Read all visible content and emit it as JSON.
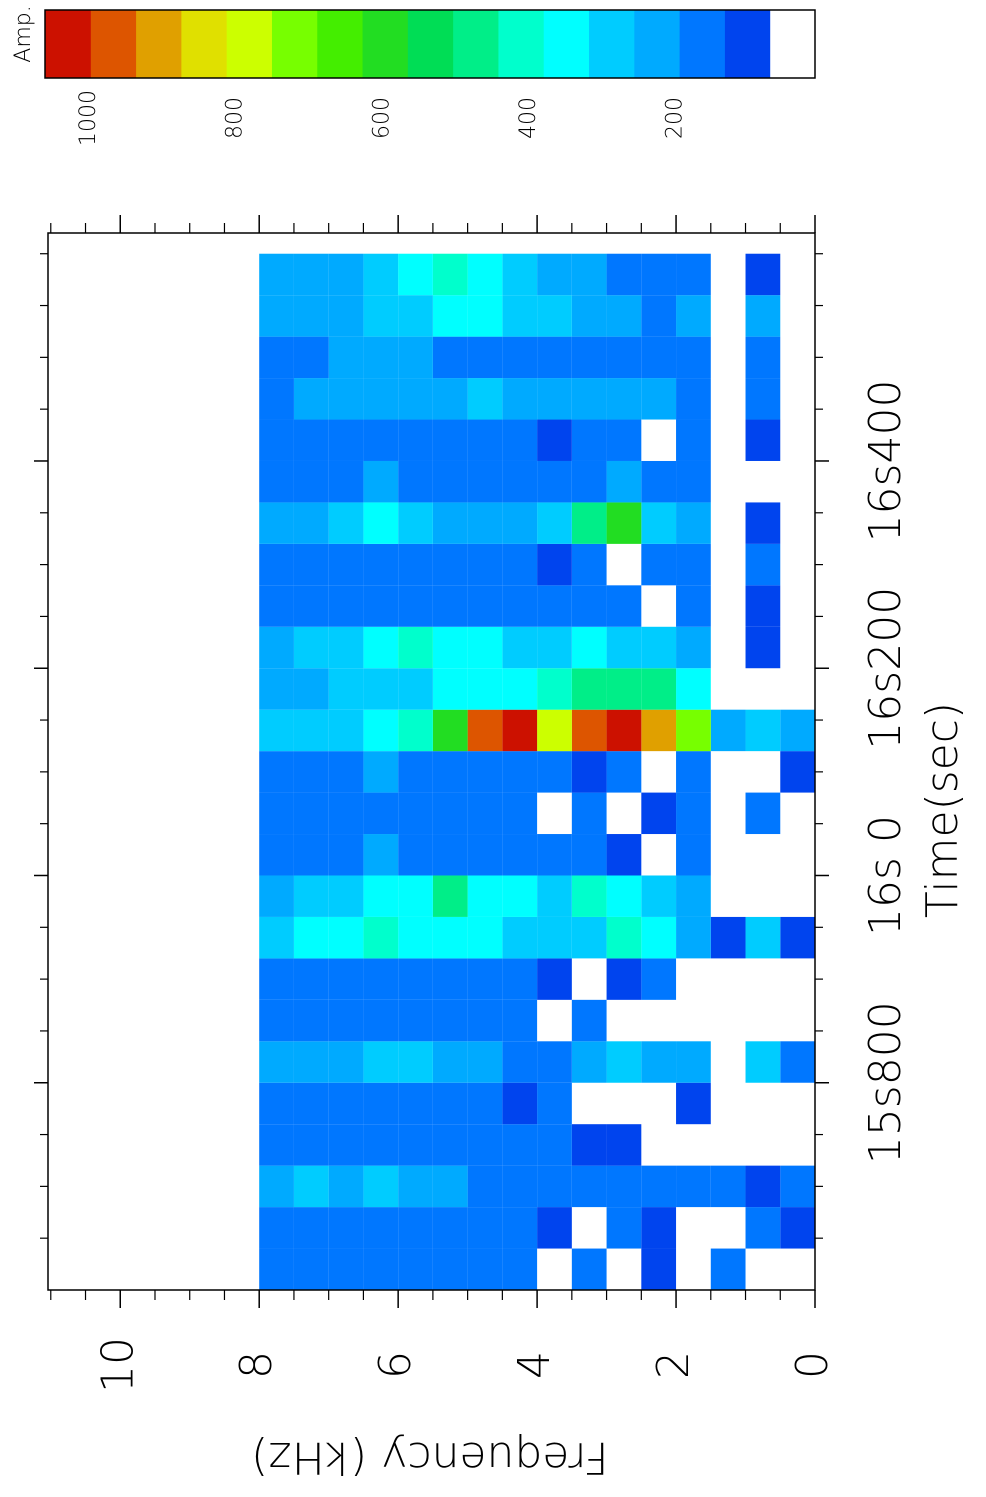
{
  "chart_data": {
    "type": "heatmap",
    "xlabel": "Time(sec)",
    "ylabel": "Frequency (kHz)",
    "colorbar_label": "Amp.",
    "xlim": [
      15.6,
      16.62
    ],
    "ylim": [
      0,
      11.04
    ],
    "xticks": [
      {
        "value": 15.8,
        "label": "15s800"
      },
      {
        "value": 16.0,
        "label": "16s 0"
      },
      {
        "value": 16.2,
        "label": "16s200"
      },
      {
        "value": 16.4,
        "label": "16s400"
      }
    ],
    "xminorticks": [
      15.65,
      15.7,
      15.75,
      15.85,
      15.9,
      15.95,
      16.05,
      16.1,
      16.15,
      16.25,
      16.3,
      16.35,
      16.45,
      16.5,
      16.55,
      16.6
    ],
    "yticks": [
      0,
      2,
      4,
      6,
      8,
      10
    ],
    "yminorticks": [
      0.5,
      1,
      1.5,
      2.5,
      3,
      3.5,
      4.5,
      5,
      5.5,
      6.5,
      7,
      7.5,
      8.5,
      9,
      9.5,
      10.5,
      11
    ],
    "clim": [
      10,
      1060
    ],
    "cticks": [
      200,
      400,
      600,
      800,
      1000
    ],
    "colors": [
      "#ffffff",
      "#0044ee",
      "#0077ff",
      "#00aaff",
      "#00ccff",
      "#00ffff",
      "#00ffcc",
      "#00ee88",
      "#00dd55",
      "#22dd22",
      "#44ee00",
      "#77ff00",
      "#ccff00",
      "#e0e000",
      "#e0a000",
      "#dd5500",
      "#cc1100"
    ],
    "x": [
      15.62,
      15.66,
      15.7,
      15.74,
      15.78,
      15.82,
      15.86,
      15.9,
      15.94,
      15.98,
      16.02,
      16.06,
      16.1,
      16.14,
      16.18,
      16.22,
      16.26,
      16.3,
      16.34,
      16.38,
      16.42,
      16.46,
      16.5,
      16.54,
      16.58
    ],
    "y": [
      0.25,
      0.75,
      1.25,
      1.75,
      2.25,
      2.75,
      3.25,
      3.75,
      4.25,
      4.75,
      5.25,
      5.75,
      6.25,
      6.75,
      7.25,
      7.75
    ],
    "z": [
      [
        null,
        120,
        150,
        null,
        null,
        150,
        null,
        null,
        130,
        null,
        null,
        null,
        130,
        200,
        null,
        null,
        null,
        null,
        null,
        null,
        null,
        null,
        null,
        null,
        null
      ],
      [
        null,
        180,
        130,
        null,
        null,
        280,
        null,
        null,
        300,
        null,
        null,
        170,
        null,
        260,
        null,
        130,
        130,
        140,
        120,
        null,
        130,
        150,
        180,
        200,
        130
      ],
      [
        150,
        null,
        140,
        null,
        null,
        null,
        null,
        null,
        130,
        null,
        null,
        null,
        null,
        230,
        null,
        null,
        null,
        null,
        null,
        null,
        null,
        null,
        null,
        null,
        null
      ],
      [
        null,
        null,
        140,
        null,
        130,
        200,
        null,
        null,
        250,
        200,
        140,
        140,
        150,
        700,
        380,
        220,
        160,
        160,
        200,
        170,
        160,
        160,
        170,
        200,
        180
      ],
      [
        130,
        130,
        150,
        null,
        null,
        250,
        null,
        140,
        330,
        280,
        null,
        130,
        null,
        900,
        450,
        260,
        null,
        140,
        270,
        140,
        null,
        200,
        160,
        180,
        150
      ],
      [
        null,
        140,
        150,
        120,
        null,
        300,
        null,
        130,
        400,
        380,
        130,
        null,
        140,
        1000,
        500,
        300,
        140,
        null,
        600,
        200,
        140,
        250,
        180,
        240,
        190
      ],
      [
        140,
        null,
        140,
        130,
        null,
        200,
        140,
        null,
        300,
        420,
        150,
        140,
        130,
        950,
        450,
        330,
        140,
        180,
        500,
        160,
        170,
        230,
        140,
        220,
        200
      ],
      [
        null,
        130,
        150,
        140,
        140,
        180,
        null,
        130,
        280,
        300,
        150,
        null,
        150,
        800,
        400,
        280,
        150,
        130,
        280,
        140,
        130,
        200,
        150,
        260,
        230
      ],
      [
        150,
        140,
        170,
        140,
        130,
        180,
        150,
        140,
        300,
        330,
        160,
        150,
        160,
        1000,
        380,
        300,
        160,
        160,
        250,
        160,
        150,
        220,
        160,
        300,
        280
      ],
      [
        140,
        160,
        180,
        150,
        140,
        220,
        150,
        160,
        330,
        360,
        160,
        160,
        170,
        950,
        360,
        330,
        170,
        150,
        220,
        170,
        170,
        260,
        180,
        330,
        330
      ],
      [
        170,
        150,
        200,
        160,
        150,
        250,
        170,
        150,
        350,
        450,
        180,
        160,
        190,
        600,
        330,
        380,
        180,
        170,
        240,
        180,
        170,
        240,
        190,
        320,
        400
      ],
      [
        160,
        180,
        250,
        170,
        160,
        260,
        180,
        170,
        380,
        380,
        190,
        170,
        180,
        400,
        300,
        400,
        170,
        160,
        300,
        190,
        180,
        220,
        200,
        300,
        350
      ],
      [
        180,
        170,
        260,
        170,
        170,
        300,
        170,
        180,
        400,
        330,
        200,
        190,
        200,
        350,
        280,
        360,
        190,
        180,
        320,
        200,
        190,
        230,
        210,
        280,
        260
      ],
      [
        170,
        160,
        240,
        160,
        170,
        250,
        180,
        170,
        350,
        300,
        180,
        190,
        190,
        300,
        260,
        300,
        180,
        190,
        280,
        190,
        180,
        210,
        200,
        240,
        240
      ],
      [
        160,
        170,
        300,
        170,
        160,
        230,
        170,
        160,
        320,
        280,
        190,
        170,
        180,
        280,
        250,
        280,
        180,
        170,
        250,
        180,
        170,
        200,
        180,
        220,
        220
      ],
      [
        150,
        150,
        230,
        150,
        150,
        220,
        160,
        150,
        280,
        250,
        170,
        160,
        170,
        260,
        230,
        250,
        170,
        160,
        230,
        170,
        160,
        190,
        170,
        200,
        200
      ]
    ]
  }
}
